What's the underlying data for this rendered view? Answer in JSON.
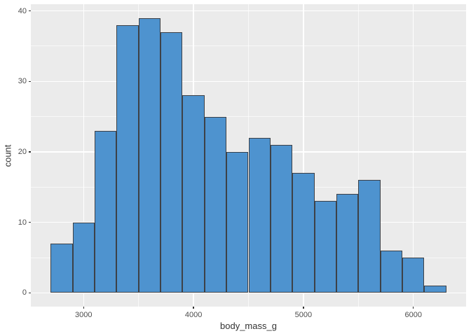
{
  "figure": {
    "background": "#FFFFFF",
    "panel_background": "#EBEBEB",
    "grid_color": "#FFFFFF",
    "bar_fill": "#4E93CF",
    "bar_stroke": "#3D4147",
    "tick_color": "#333333",
    "tick_label_color": "#4D4D4D",
    "axis_title_color": "#333333"
  },
  "chart_data": {
    "type": "bar",
    "subtype": "histogram",
    "title": "",
    "xlabel": "body_mass_g",
    "ylabel": "count",
    "bin_start": 2700,
    "bin_width": 200,
    "counts": [
      7,
      10,
      23,
      38,
      39,
      37,
      28,
      25,
      20,
      22,
      21,
      17,
      13,
      14,
      16,
      6,
      5,
      1
    ],
    "x_ticks": [
      3000,
      4000,
      5000,
      6000
    ],
    "x_tick_labels": [
      "3000",
      "4000",
      "5000",
      "6000"
    ],
    "x_minor_ticks": [
      3500,
      4500,
      5500
    ],
    "y_ticks": [
      0,
      10,
      20,
      30,
      40
    ],
    "y_tick_labels": [
      "0",
      "10",
      "20",
      "30",
      "40"
    ],
    "y_minor_ticks": [
      5,
      15,
      25,
      35
    ],
    "xlim": [
      2520,
      6480
    ],
    "ylim": [
      -1.95,
      40.95
    ],
    "grid": true,
    "legend": "none"
  }
}
